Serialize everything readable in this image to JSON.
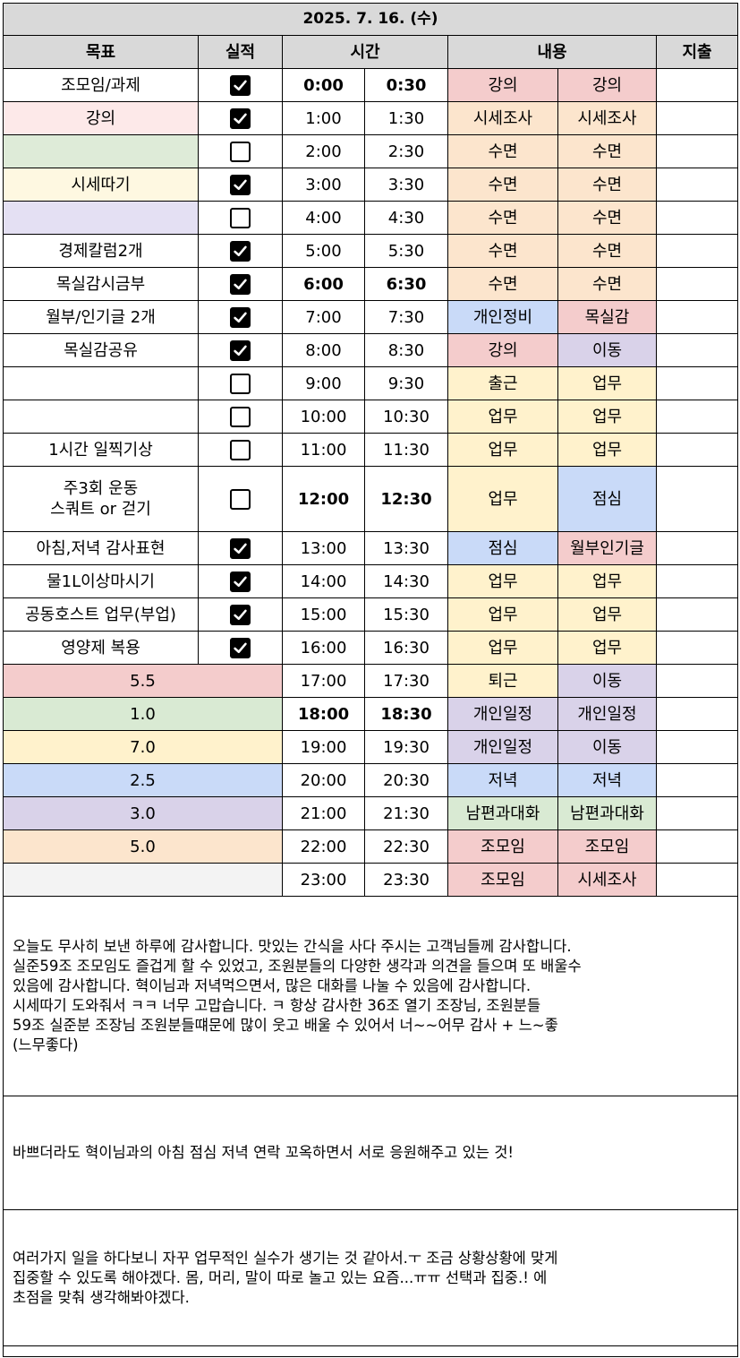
{
  "date_title": "2025. 7. 16. (수)",
  "headers": {
    "goal": "목표",
    "result": "실적",
    "time": "시간",
    "content": "내용",
    "expense": "지출"
  },
  "colors": {
    "lecture": "#f4cccc",
    "research": "#fce5cd",
    "sleep": "#fce5cd",
    "personal": "#c9daf8",
    "mokshil": "#f4cccc",
    "move": "#d9d2e9",
    "work": "#fff2cc",
    "lunch": "#c9daf8",
    "schedule": "#d9d2e9",
    "dinner": "#c9daf8",
    "talk": "#d9ead3",
    "meeting": "#f4cccc",
    "goal_pink": "#fde9e9",
    "goal_green": "#deebd8",
    "goal_yellow": "#fef8e1",
    "goal_purple": "#e4e0f3",
    "sum_red": "#f4cccc",
    "sum_green": "#d9ead3",
    "sum_yellow": "#fff2cc",
    "sum_blue": "#c9daf8",
    "sum_purple": "#d9d2e9",
    "sum_orange": "#fce5cd",
    "sum_gray": "#f3f3f3"
  },
  "rows": [
    {
      "goal": "조모임/과제",
      "goal_color": "",
      "checked": true,
      "t1": "0:00",
      "t2": "0:30",
      "bold": true,
      "c1": "강의",
      "c1_color": "lecture",
      "c2": "강의",
      "c2_color": "lecture"
    },
    {
      "goal": "강의",
      "goal_color": "goal_pink",
      "checked": true,
      "t1": "1:00",
      "t2": "1:30",
      "bold": false,
      "c1": "시세조사",
      "c1_color": "research",
      "c2": "시세조사",
      "c2_color": "research"
    },
    {
      "goal": "",
      "goal_color": "goal_green",
      "checked": false,
      "t1": "2:00",
      "t2": "2:30",
      "bold": false,
      "c1": "수면",
      "c1_color": "sleep",
      "c2": "수면",
      "c2_color": "sleep"
    },
    {
      "goal": "시세따기",
      "goal_color": "goal_yellow",
      "checked": true,
      "t1": "3:00",
      "t2": "3:30",
      "bold": false,
      "c1": "수면",
      "c1_color": "sleep",
      "c2": "수면",
      "c2_color": "sleep"
    },
    {
      "goal": "",
      "goal_color": "goal_purple",
      "checked": false,
      "t1": "4:00",
      "t2": "4:30",
      "bold": false,
      "c1": "수면",
      "c1_color": "sleep",
      "c2": "수면",
      "c2_color": "sleep"
    },
    {
      "goal": "경제칼럼2개",
      "goal_color": "",
      "checked": true,
      "t1": "5:00",
      "t2": "5:30",
      "bold": false,
      "c1": "수면",
      "c1_color": "sleep",
      "c2": "수면",
      "c2_color": "sleep"
    },
    {
      "goal": "목실감시금부",
      "goal_color": "",
      "checked": true,
      "t1": "6:00",
      "t2": "6:30",
      "bold": true,
      "c1": "수면",
      "c1_color": "sleep",
      "c2": "수면",
      "c2_color": "sleep"
    },
    {
      "goal": "월부/인기글 2개",
      "goal_color": "",
      "checked": true,
      "t1": "7:00",
      "t2": "7:30",
      "bold": false,
      "c1": "개인정비",
      "c1_color": "personal",
      "c2": "목실감",
      "c2_color": "mokshil"
    },
    {
      "goal": "목실감공유",
      "goal_color": "",
      "checked": true,
      "t1": "8:00",
      "t2": "8:30",
      "bold": false,
      "c1": "강의",
      "c1_color": "lecture",
      "c2": "이동",
      "c2_color": "move"
    },
    {
      "goal": "",
      "goal_color": "",
      "checked": false,
      "t1": "9:00",
      "t2": "9:30",
      "bold": false,
      "c1": "출근",
      "c1_color": "work",
      "c2": "업무",
      "c2_color": "work"
    },
    {
      "goal": "",
      "goal_color": "",
      "checked": false,
      "t1": "10:00",
      "t2": "10:30",
      "bold": false,
      "c1": "업무",
      "c1_color": "work",
      "c2": "업무",
      "c2_color": "work"
    },
    {
      "goal": "1시간 일찍기상",
      "goal_color": "",
      "checked": false,
      "t1": "11:00",
      "t2": "11:30",
      "bold": false,
      "c1": "업무",
      "c1_color": "work",
      "c2": "업무",
      "c2_color": "work"
    },
    {
      "goal": "주3회 운동\n스쿼트 or 걷기",
      "goal_color": "",
      "checked": false,
      "t1": "12:00",
      "t2": "12:30",
      "bold": true,
      "c1": "업무",
      "c1_color": "work",
      "c2": "점심",
      "c2_color": "lunch"
    },
    {
      "goal": "아침,저녁 감사표현",
      "goal_color": "",
      "checked": true,
      "t1": "13:00",
      "t2": "13:30",
      "bold": false,
      "c1": "점심",
      "c1_color": "lunch",
      "c2": "월부인기글",
      "c2_color": "mokshil"
    },
    {
      "goal": "물1L이상마시기",
      "goal_color": "",
      "checked": true,
      "t1": "14:00",
      "t2": "14:30",
      "bold": false,
      "c1": "업무",
      "c1_color": "work",
      "c2": "업무",
      "c2_color": "work"
    },
    {
      "goal": "공동호스트 업무(부업)",
      "goal_color": "",
      "checked": true,
      "t1": "15:00",
      "t2": "15:30",
      "bold": false,
      "c1": "업무",
      "c1_color": "work",
      "c2": "업무",
      "c2_color": "work"
    },
    {
      "goal": "영양제 복용",
      "goal_color": "",
      "checked": true,
      "t1": "16:00",
      "t2": "16:30",
      "bold": false,
      "c1": "업무",
      "c1_color": "work",
      "c2": "업무",
      "c2_color": "work"
    },
    {
      "summary": "5.5",
      "goal_color": "sum_red",
      "t1": "17:00",
      "t2": "17:30",
      "bold": false,
      "c1": "퇴근",
      "c1_color": "work",
      "c2": "이동",
      "c2_color": "move"
    },
    {
      "summary": "1.0",
      "goal_color": "sum_green",
      "t1": "18:00",
      "t2": "18:30",
      "bold": true,
      "c1": "개인일정",
      "c1_color": "schedule",
      "c2": "개인일정",
      "c2_color": "schedule"
    },
    {
      "summary": "7.0",
      "goal_color": "sum_yellow",
      "t1": "19:00",
      "t2": "19:30",
      "bold": false,
      "c1": "개인일정",
      "c1_color": "schedule",
      "c2": "이동",
      "c2_color": "move"
    },
    {
      "summary": "2.5",
      "goal_color": "sum_blue",
      "t1": "20:00",
      "t2": "20:30",
      "bold": false,
      "c1": "저녁",
      "c1_color": "dinner",
      "c2": "저녁",
      "c2_color": "dinner"
    },
    {
      "summary": "3.0",
      "goal_color": "sum_purple",
      "t1": "21:00",
      "t2": "21:30",
      "bold": false,
      "c1": "남편과대화",
      "c1_color": "talk",
      "c2": "남편과대화",
      "c2_color": "talk"
    },
    {
      "summary": "5.0",
      "goal_color": "sum_orange",
      "t1": "22:00",
      "t2": "22:30",
      "bold": false,
      "c1": "조모임",
      "c1_color": "meeting",
      "c2": "조모임",
      "c2_color": "meeting"
    },
    {
      "summary": "",
      "goal_color": "sum_gray",
      "t1": "23:00",
      "t2": "23:30",
      "bold": false,
      "c1": "조모임",
      "c1_color": "meeting",
      "c2": "시세조사",
      "c2_color": "lecture"
    }
  ],
  "notes": [
    "오늘도 무사히 보낸 하루에 감사합니다.  맛있는 간식을 사다 주시는 고객님들께 감사합니다.\n실준59조 조모임도 즐겁게 할 수 있었고, 조원분들의 다양한 생각과 의견을 들으며 또 배울수\n있음에 감사합니다. 혁이님과 저녁먹으면서, 많은 대화를 나눌 수 있음에 감사합니다.\n시세따기 도와줘서 ㅋㅋ 너무 고맙습니다. ㅋ 항상 감사한 36조 열기 조장님, 조원분들\n59조 실준분 조장님 조원분들떄문에 많이 웃고 배울 수 있어서 너~~어무 감사 + 느~좋\n(느무좋다)",
    "바쁘더라도 혁이님과의 아침 점심 저녁 연락 꼬옥하면서 서로 응원해주고 있는 것!",
    "여러가지 일을 하다보니 자꾸 업무적인 실수가 생기는 것 같아서.ㅜ 조금 상황상황에 맞게\n집중할 수 있도록 해야겠다.  몸, 머리, 말이 따로 놀고 있는 요즘...ㅠㅠ 선택과 집중.! 에\n초점을 맞춰 생각해봐야겠다."
  ]
}
